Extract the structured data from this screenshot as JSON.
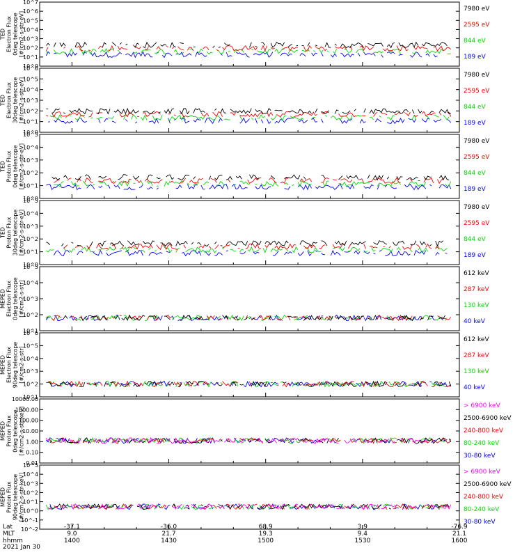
{
  "colors": {
    "black": "#000000",
    "red": "#ff0000",
    "green": "#00dd00",
    "blue": "#0000ff",
    "magenta": "#ff00ff"
  },
  "time_axis": {
    "xlim": [
      "13:50",
      "16:00"
    ]
  },
  "chart_data": [
    {
      "type": "line",
      "ylabel": [
        "TED",
        "Electron Flux",
        "0deg telescope",
        "[#/cm2-s-str-eV]"
      ],
      "ylim_exp": [
        0,
        7
      ],
      "tick_labels": [
        "10^0",
        "10^1",
        "10^2",
        "10^3",
        "10^4",
        "10^5",
        "10^6",
        "10^7"
      ],
      "legend": [
        {
          "label": "7980 eV",
          "color": "black"
        },
        {
          "label": "2595 eV",
          "color": "red"
        },
        {
          "label": "844 eV",
          "color": "green"
        },
        {
          "label": "189 eV",
          "color": "blue"
        }
      ]
    },
    {
      "type": "line",
      "ylabel": [
        "TED",
        "Electron Flux",
        "30deg telescope",
        "[#/cm2-s-str-eV]"
      ],
      "ylim_exp": [
        0,
        6
      ],
      "tick_labels": [
        "10^0",
        "10^1",
        "10^2",
        "10^3",
        "10^4",
        "10^5",
        "10^6"
      ],
      "legend": [
        {
          "label": "7980 eV",
          "color": "black"
        },
        {
          "label": "2595 eV",
          "color": "red"
        },
        {
          "label": "844 eV",
          "color": "green"
        },
        {
          "label": "189 eV",
          "color": "blue"
        }
      ]
    },
    {
      "type": "line",
      "ylabel": [
        "TED",
        "Proton Flux",
        "0deg telescope",
        "[#/cm2-s-str-eV]"
      ],
      "ylim_exp": [
        0,
        5
      ],
      "tick_labels": [
        "10^0",
        "10^1",
        "10^2",
        "10^3",
        "10^4",
        "10^5"
      ],
      "legend": [
        {
          "label": "7980 eV",
          "color": "black"
        },
        {
          "label": "2595 eV",
          "color": "red"
        },
        {
          "label": "844 eV",
          "color": "green"
        },
        {
          "label": "189 eV",
          "color": "blue"
        }
      ]
    },
    {
      "type": "line",
      "ylabel": [
        "TED",
        "Proton Flux",
        "30deg telescope",
        "[#/cm2-s-str-eV]"
      ],
      "ylim_exp": [
        0,
        5
      ],
      "tick_labels": [
        "10^0",
        "10^1",
        "10^2",
        "10^3",
        "10^4",
        "10^5"
      ],
      "legend": [
        {
          "label": "7980 eV",
          "color": "black"
        },
        {
          "label": "2595 eV",
          "color": "red"
        },
        {
          "label": "844 eV",
          "color": "green"
        },
        {
          "label": "189 eV",
          "color": "blue"
        }
      ]
    },
    {
      "type": "line",
      "ylabel": [
        "MEPED",
        "Electron Flux",
        "0deg telescope",
        "[#/cm2-s-str]"
      ],
      "ylim_exp": [
        1,
        5
      ],
      "tick_labels": [
        "10^1",
        "10^2",
        "10^3",
        "10^4",
        "10^5"
      ],
      "legend": [
        {
          "label": "612 keV",
          "color": "black"
        },
        {
          "label": "287 keV",
          "color": "red"
        },
        {
          "label": "130 keV",
          "color": "green"
        },
        {
          "label": "40 keV",
          "color": "blue"
        }
      ]
    },
    {
      "type": "line",
      "ylabel": [
        "MEPED",
        "Electron Flux",
        "90deg telescope",
        "[#/cm2-s-str]"
      ],
      "ylim_exp": [
        1,
        6
      ],
      "tick_labels": [
        "10^1",
        "10^2",
        "10^3",
        "10^4",
        "10^5",
        "10^6"
      ],
      "legend": [
        {
          "label": "612 keV",
          "color": "black"
        },
        {
          "label": "287 keV",
          "color": "red"
        },
        {
          "label": "130 keV",
          "color": "green"
        },
        {
          "label": "40 keV",
          "color": "blue"
        }
      ]
    },
    {
      "type": "line",
      "ylabel": [
        "MEPED",
        "Proton Flux",
        "0deg telescope",
        "[#/cm2-s-str-keV]"
      ],
      "ylim_exp": [
        -2,
        4
      ],
      "tick_labels": [
        "0.01",
        "0.10",
        "1.00",
        "10.00",
        "100.00",
        "1000.00",
        "10000.00"
      ],
      "legend": [
        {
          "label": "> 6900 keV",
          "color": "magenta"
        },
        {
          "label": "2500-6900 keV",
          "color": "black"
        },
        {
          "label": "240-800 keV",
          "color": "red"
        },
        {
          "label": "80-240 keV",
          "color": "green"
        },
        {
          "label": "30-80 keV",
          "color": "blue"
        }
      ]
    },
    {
      "type": "line",
      "ylabel": [
        "MEPED",
        "Proton Flux",
        "90deg telescope",
        "[#/cm2-s-str-keV]"
      ],
      "ylim_exp": [
        -2,
        5
      ],
      "tick_labels": [
        "10^-2",
        "10^-1",
        "10^0",
        "10^1",
        "10^2",
        "10^3",
        "10^4",
        "10^5"
      ],
      "legend": [
        {
          "label": "> 6900 keV",
          "color": "magenta"
        },
        {
          "label": "2500-6900 keV",
          "color": "black"
        },
        {
          "label": "240-800 keV",
          "color": "red"
        },
        {
          "label": "80-240 keV",
          "color": "green"
        },
        {
          "label": "30-80 keV",
          "color": "blue"
        }
      ]
    }
  ],
  "footer": {
    "row_labels": [
      "Lat",
      "MLT",
      "hhmm",
      "2021 Jan 30"
    ],
    "columns": [
      {
        "time": "14:00",
        "lat": "-37.1",
        "mlt": "9.0",
        "hhmm": "1400"
      },
      {
        "time": "14:30",
        "lat": "-36.0",
        "mlt": "21.7",
        "hhmm": "1430"
      },
      {
        "time": "15:00",
        "lat": "68.9",
        "mlt": "19.3",
        "hhmm": "1500"
      },
      {
        "time": "15:30",
        "lat": "3.9",
        "mlt": "9.4",
        "hhmm": "1530"
      },
      {
        "time": "16:00",
        "lat": "-76.9",
        "mlt": "21.1",
        "hhmm": "1600"
      }
    ]
  }
}
